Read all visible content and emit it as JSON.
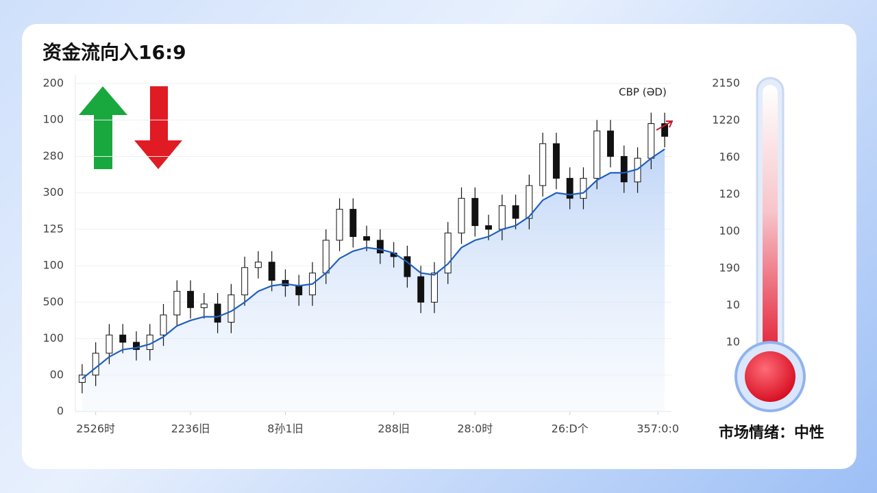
{
  "chart_data": {
    "type": "candlestick",
    "title": "资金流向入16:9",
    "annotation": "CBP (ƏD)",
    "x": [
      0,
      1,
      2,
      3,
      4,
      5,
      6,
      7,
      8,
      9,
      10,
      11,
      12,
      13,
      14,
      15,
      16,
      17,
      18,
      19,
      20,
      21,
      22,
      23,
      24,
      25,
      26,
      27,
      28,
      29,
      30,
      31,
      32,
      33,
      34,
      35,
      36,
      37,
      38,
      39,
      40,
      41,
      42,
      43
    ],
    "open": [
      0.8,
      1.0,
      1.6,
      2.1,
      1.9,
      1.7,
      2.1,
      2.65,
      3.3,
      2.85,
      2.95,
      2.45,
      3.2,
      3.95,
      4.1,
      3.6,
      3.45,
      3.2,
      3.8,
      4.7,
      5.55,
      4.8,
      4.7,
      4.35,
      4.25,
      3.7,
      3.0,
      3.8,
      4.9,
      5.85,
      5.1,
      5.0,
      5.65,
      5.3,
      6.2,
      7.35,
      6.4,
      5.85,
      6.4,
      7.7,
      7.0,
      6.3,
      6.95,
      7.9
    ],
    "high": [
      1.3,
      1.9,
      2.4,
      2.4,
      2.2,
      2.4,
      2.95,
      3.6,
      3.6,
      3.25,
      3.25,
      3.5,
      4.25,
      4.4,
      4.4,
      3.9,
      3.75,
      4.1,
      5.0,
      5.85,
      5.85,
      5.1,
      5.0,
      4.65,
      4.55,
      4.0,
      4.1,
      5.2,
      6.15,
      6.15,
      5.4,
      5.95,
      5.95,
      6.5,
      7.65,
      7.65,
      6.7,
      6.7,
      8.0,
      8.0,
      7.3,
      7.25,
      8.2,
      8.2
    ],
    "low": [
      0.5,
      0.7,
      1.3,
      1.6,
      1.4,
      1.4,
      1.8,
      2.35,
      2.55,
      2.55,
      2.15,
      2.15,
      2.9,
      3.65,
      3.3,
      3.15,
      2.9,
      2.9,
      3.5,
      4.4,
      4.5,
      4.4,
      4.05,
      3.95,
      3.4,
      2.7,
      2.7,
      3.5,
      4.6,
      4.8,
      4.7,
      4.7,
      5.0,
      5.0,
      5.9,
      6.1,
      5.55,
      5.55,
      6.1,
      6.7,
      6.0,
      6.0,
      6.65,
      7.25
    ],
    "close": [
      1.0,
      1.6,
      2.1,
      1.9,
      1.7,
      2.1,
      2.65,
      3.3,
      2.85,
      2.95,
      2.45,
      3.2,
      3.95,
      4.1,
      3.6,
      3.45,
      3.2,
      3.8,
      4.7,
      5.55,
      4.8,
      4.7,
      4.35,
      4.25,
      3.7,
      3.0,
      3.8,
      4.9,
      5.85,
      5.1,
      5.0,
      5.65,
      5.3,
      6.2,
      7.35,
      6.4,
      5.85,
      6.4,
      7.7,
      7.0,
      6.3,
      6.95,
      7.9,
      7.55
    ],
    "up_color": "#ffffff",
    "down_color": "#111111",
    "line": {
      "color": "#1f5fbf",
      "values": [
        0.9,
        1.2,
        1.5,
        1.7,
        1.75,
        1.85,
        2.05,
        2.35,
        2.5,
        2.6,
        2.6,
        2.75,
        3.0,
        3.3,
        3.45,
        3.5,
        3.45,
        3.5,
        3.8,
        4.2,
        4.4,
        4.5,
        4.45,
        4.35,
        4.1,
        3.8,
        3.75,
        4.05,
        4.5,
        4.7,
        4.8,
        5.0,
        5.1,
        5.35,
        5.8,
        6.0,
        5.95,
        6.0,
        6.35,
        6.55,
        6.55,
        6.65,
        6.95,
        7.2
      ]
    },
    "xlim": [
      -0.5,
      43.5
    ],
    "xticks": [
      {
        "value": 1,
        "label": "2526时"
      },
      {
        "value": 8,
        "label": "2236旧"
      },
      {
        "value": 15,
        "label": "8孙1旧"
      },
      {
        "value": 23,
        "label": "288旧"
      },
      {
        "value": 29,
        "label": "28:0时"
      },
      {
        "value": 36,
        "label": "26:D个"
      },
      {
        "value": 42.5,
        "label": "357:0:0"
      }
    ],
    "ylim": [
      0,
      9
    ],
    "yticks": [
      {
        "value": 0,
        "label": "0"
      },
      {
        "value": 1,
        "label": "00"
      },
      {
        "value": 2,
        "label": "100"
      },
      {
        "value": 3,
        "label": "500"
      },
      {
        "value": 4,
        "label": "100"
      },
      {
        "value": 5,
        "label": "125"
      },
      {
        "value": 6,
        "label": "300"
      },
      {
        "value": 7,
        "label": "280"
      },
      {
        "value": 8,
        "label": "100"
      },
      {
        "value": 9,
        "label": "200"
      }
    ],
    "grid": true
  },
  "gauge": {
    "labels": [
      "2150",
      "1220",
      "160",
      "120",
      "100",
      "190",
      "10",
      "10"
    ],
    "caption": "市场情绪：中性"
  }
}
